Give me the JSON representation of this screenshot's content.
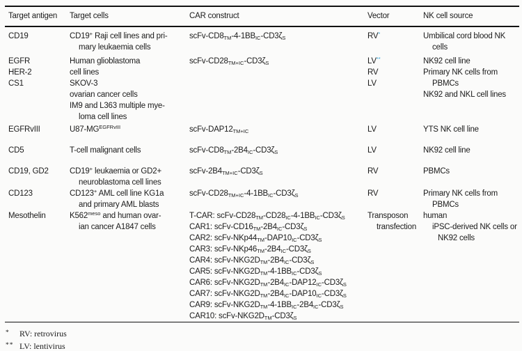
{
  "accent_color": "#2b9fd6",
  "table": {
    "columns": [
      "Target antigen",
      "Target cells",
      "CAR construct",
      "Vector",
      "NK cell source"
    ],
    "groups": [
      {
        "antigen": [
          "CD19"
        ],
        "cells": [
          "CD19^{+} Raji cell lines and pri-",
          ">mary leukaemia cells"
        ],
        "construct": [
          "scFv-CD8{TM}-4-1BB{IC}-CD3ζ{S}"
        ],
        "vector": [
          "RV~{*}"
        ],
        "source": [
          "Umbilical cord blood NK",
          ">cells"
        ]
      },
      {
        "antigen": [
          "EGFR",
          "HER-2",
          "CS1"
        ],
        "cells": [
          "Human glioblastoma",
          "cell lines",
          "SKOV-3",
          "ovarian cancer cells",
          "IM9 and L363 multiple mye-",
          ">loma cell lines"
        ],
        "construct": [
          "scFv-CD28{TM+IC}-CD3ζ{S}"
        ],
        "vector": [
          "LV~{**}",
          "RV",
          "LV"
        ],
        "source": [
          "NK92 cell line",
          "Primary NK cells from",
          ">PBMCs",
          "NK92 and NKL cell lines"
        ]
      },
      {
        "antigen": [
          "EGFRvIII"
        ],
        "cells": [
          "U87-MG^{EGFRvIII}"
        ],
        "construct": [
          "scFv-DAP12{TM+IC}"
        ],
        "vector": [
          "LV"
        ],
        "source": [
          "YTS NK cell line"
        ]
      },
      {
        "antigen": [
          "CD5"
        ],
        "cells": [
          "T-cell malignant cells"
        ],
        "construct": [
          "scFv-CD8{TM}-2B4{IC}-CD3ζ{S}"
        ],
        "vector": [
          "LV"
        ],
        "source": [
          "NK92 cell line"
        ]
      },
      {
        "antigen": [
          "CD19, GD2"
        ],
        "cells": [
          "CD19^{+} leukaemia or GD2+",
          ">neuroblastoma cell lines"
        ],
        "construct": [
          "scFv-2B4{TM+IC}-CD3ζ{S}"
        ],
        "vector": [
          "RV"
        ],
        "source": [
          "PBMCs"
        ]
      },
      {
        "antigen": [
          "CD123"
        ],
        "cells": [
          "CD123^{+} AML cell line KG1a",
          ">and primary AML blasts"
        ],
        "construct": [
          "scFv-CD28{TM+IC}-4-1BB{IC}-CD3ζ{S}"
        ],
        "vector": [
          "RV"
        ],
        "source": [
          "Primary NK cells from",
          ">PBMCs"
        ]
      },
      {
        "antigen": [
          "Mesothelin"
        ],
        "cells": [
          "K562^{meso} and human ovar-",
          ">ian cancer A1847 cells"
        ],
        "construct": [
          "T-CAR: scFv-CD28{TM}-CD28{IC}-4-1BB{IC}-CD3ζ{S}",
          "CAR1: scFv-CD16{TM}-2B4{IC}-CD3ζ{S}",
          "CAR2: scFv-NKp44{TM}-DAP10{IC}-CD3ζ{S}",
          "CAR3: scFv-NKp46{TM}-2B4{IC}-CD3ζ{S}",
          "CAR4: scFv-NKG2D{TM}-2B4{IC}-CD3ζ{S}",
          "CAR5: scFv-NKG2D{TM}-4-1BB{IC}-CD3ζ{S}",
          "CAR6: scFv-NKG2D{TM}-2B4{IC}-DAP12{IC}-CD3ζ{S}",
          "CAR7: scFv-NKG2D{TM}-2B4{IC}-DAP10{IC}-CD3ζ{S}",
          "CAR9: scFv-NKG2D{TM}-4-1BB{IC}-2B4{IC}-CD3ζ{S}",
          "CAR10: scFv-NKG2D{TM}-CD3ζ{S}"
        ],
        "vector": [
          "Transposon",
          ">transfection"
        ],
        "source": [
          "human",
          ">iPSC-derived NK cells or",
          ">>NK92 cells"
        ]
      }
    ]
  },
  "footnotes": [
    {
      "marker": "*",
      "text": "RV: retrovirus"
    },
    {
      "marker": "**",
      "text": "LV: lentivirus"
    }
  ]
}
